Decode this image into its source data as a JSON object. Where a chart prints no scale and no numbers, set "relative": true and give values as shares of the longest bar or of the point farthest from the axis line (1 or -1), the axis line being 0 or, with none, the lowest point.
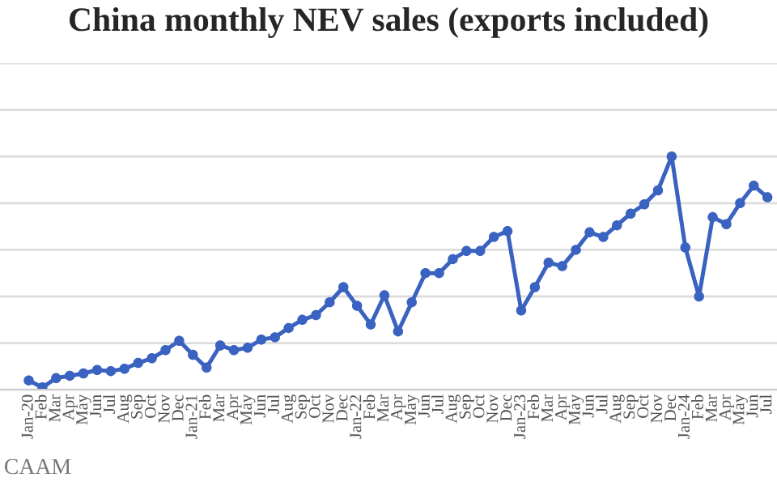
{
  "chart_data": {
    "type": "line",
    "title": "China monthly NEV sales (exports included)",
    "categories": [
      "Jan-20",
      "Feb",
      "Mar",
      "Apr",
      "May",
      "Jun",
      "Jul",
      "Aug",
      "Sep",
      "Oct",
      "Nov",
      "Dec",
      "Jan-21",
      "Feb",
      "Mar",
      "Apr",
      "May",
      "Jun",
      "Jul",
      "Aug",
      "Sep",
      "Oct",
      "Nov",
      "Dec",
      "Jan-22",
      "Feb",
      "Mar",
      "Apr",
      "May",
      "Jun",
      "Jul",
      "Aug",
      "Sep",
      "Oct",
      "Nov",
      "Dec",
      "Jan-23",
      "Feb",
      "Mar",
      "Apr",
      "May",
      "Jun",
      "Jul",
      "Aug",
      "Sep",
      "Oct",
      "Nov",
      "Dec",
      "Jan-24",
      "Feb",
      "Mar",
      "Apr",
      "May",
      "Jun",
      "Jul"
    ],
    "series": [
      {
        "color": "#3a62c0",
        "values": [
          0.04,
          0.01,
          0.05,
          0.06,
          0.07,
          0.085,
          0.08,
          0.09,
          0.115,
          0.135,
          0.17,
          0.21,
          0.15,
          0.095,
          0.19,
          0.17,
          0.18,
          0.215,
          0.225,
          0.265,
          0.3,
          0.32,
          0.375,
          0.44,
          0.36,
          0.28,
          0.405,
          0.25,
          0.375,
          0.5,
          0.5,
          0.56,
          0.595,
          0.595,
          0.655,
          0.68,
          0.34,
          0.44,
          0.545,
          0.53,
          0.6,
          0.675,
          0.655,
          0.705,
          0.755,
          0.795,
          0.855,
          1,
          0.61,
          0.4,
          0.74,
          0.71,
          0.8,
          0.875,
          0.825
        ]
      }
    ],
    "relative": true,
    "grid": "y",
    "marker": "circle",
    "line_style": "solid",
    "annotations": [
      "CAAM"
    ]
  }
}
